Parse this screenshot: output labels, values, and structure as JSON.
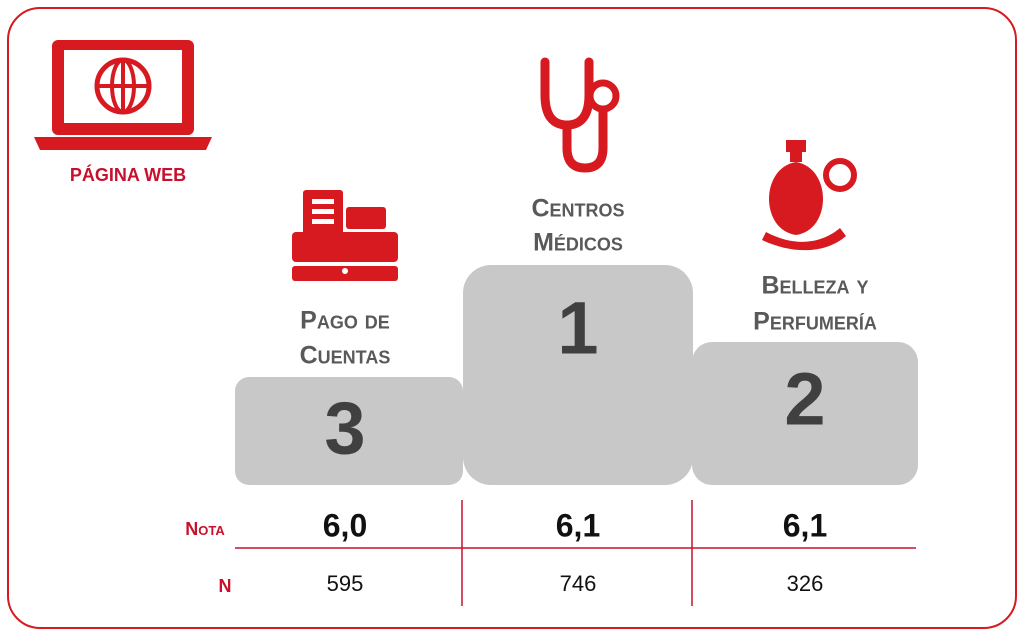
{
  "header": {
    "label": "PÁGINA WEB"
  },
  "row_labels": {
    "nota": "Nota",
    "n": "N"
  },
  "podium": [
    {
      "rank": "3",
      "name": [
        "Pago de",
        "Cuentas"
      ],
      "nota": "6,0",
      "n": "595"
    },
    {
      "rank": "1",
      "name": [
        "Centros",
        "Médicos"
      ],
      "nota": "6,1",
      "n": "746"
    },
    {
      "rank": "2",
      "name": [
        "Belleza y",
        "Perfumería"
      ],
      "nota": "6,1",
      "n": "326"
    }
  ]
}
